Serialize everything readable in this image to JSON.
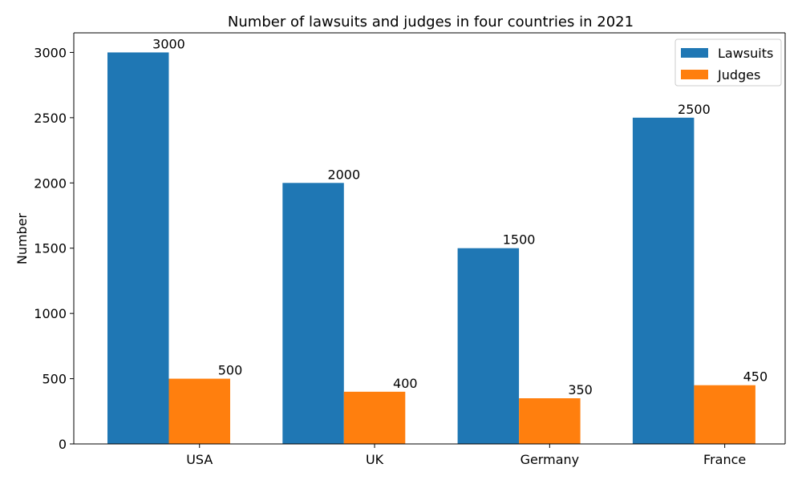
{
  "chart_data": {
    "type": "bar",
    "title": "Number of lawsuits and judges in four countries in 2021",
    "xlabel": "",
    "ylabel": "Number",
    "categories": [
      "USA",
      "UK",
      "Germany",
      "France"
    ],
    "series": [
      {
        "name": "Lawsuits",
        "values": [
          3000,
          2000,
          1500,
          2500
        ],
        "color": "#1f77b4"
      },
      {
        "name": "Judges",
        "values": [
          500,
          400,
          350,
          450
        ],
        "color": "#ff7f0e"
      }
    ],
    "ylim": [
      0,
      3150
    ],
    "yticks": [
      0,
      500,
      1000,
      1500,
      2000,
      2500,
      3000
    ],
    "data_labels": true,
    "legend_position": "top-right",
    "grid": false
  }
}
